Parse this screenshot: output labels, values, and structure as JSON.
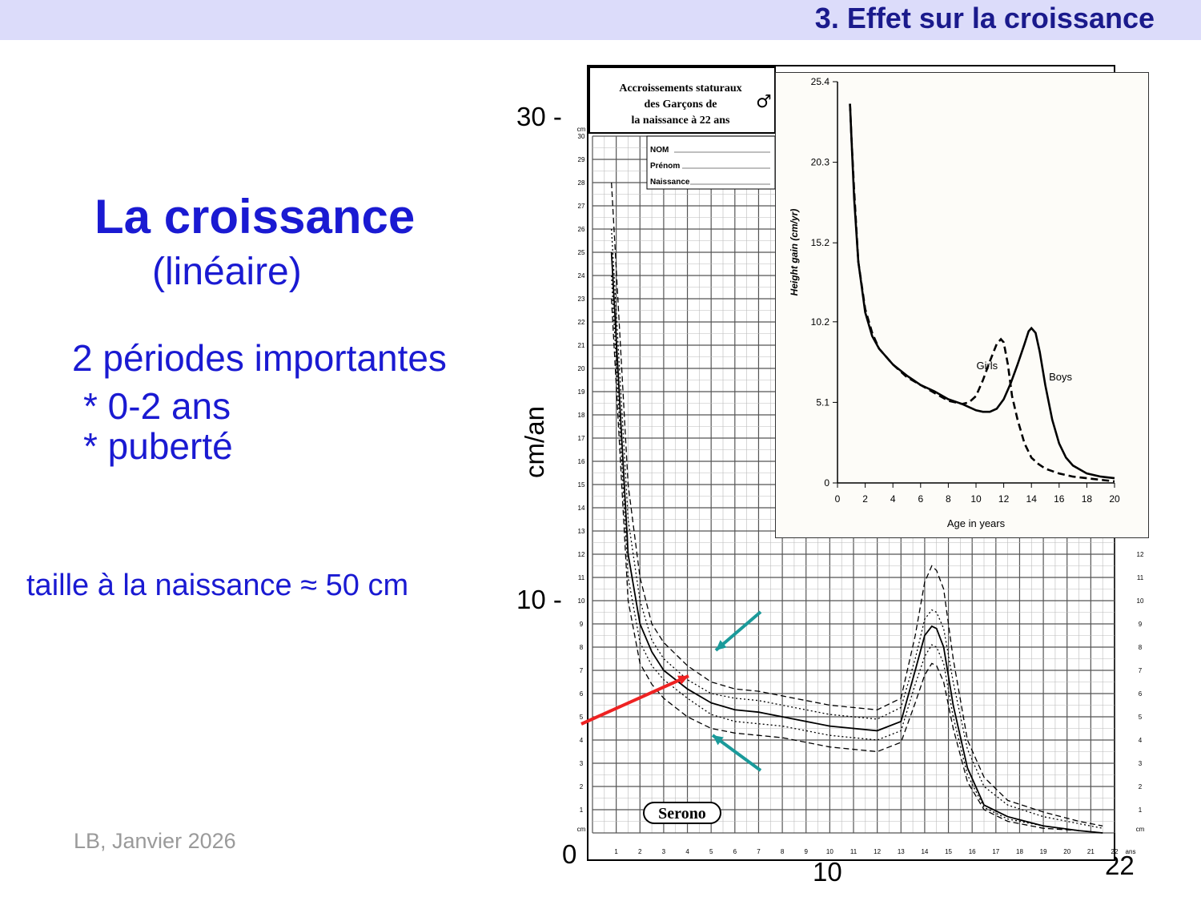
{
  "header": {
    "title": "3. Effet sur la croissance"
  },
  "slide": {
    "title": "La croissance",
    "subtitle": "(linéaire)",
    "periods_heading": "2 périodes importantes",
    "bullets": [
      "* 0-2 ans",
      "* puberté"
    ],
    "birth_note": "taille à la naissance ≈ 50 cm",
    "footer": "LB, Janvier 2026"
  },
  "axis_overlay": {
    "y_top": "30 -",
    "y_mid": "10 -",
    "y_zero": "0",
    "y_unit": "cm/an",
    "x_mid": "10",
    "x_end": "22"
  },
  "chart_data": [
    {
      "type": "line",
      "title": "Accroissements staturaux des Garçons de la naissance à 22 ans",
      "symbol": "♂",
      "form_fields": [
        "NOM",
        "Prénom",
        "Naissance"
      ],
      "brand": "Serono",
      "y_unit": "cm",
      "x_unit": "ans",
      "xlim": [
        0,
        22
      ],
      "ylim": [
        0,
        30
      ],
      "x_ticks": [
        1,
        2,
        3,
        4,
        5,
        6,
        7,
        8,
        9,
        10,
        11,
        12,
        13,
        14,
        15,
        16,
        17,
        18,
        19,
        20,
        21,
        22
      ],
      "y_ticks": [
        1,
        2,
        3,
        4,
        5,
        6,
        7,
        8,
        9,
        10,
        11,
        12,
        13,
        14,
        15,
        16,
        17,
        18,
        19,
        20,
        21,
        22,
        23,
        24,
        25,
        26,
        27,
        28,
        29,
        30
      ],
      "series": [
        {
          "style": "dashed",
          "x": [
            0.8,
            1.5,
            2,
            2.5,
            3,
            4,
            5,
            6,
            7,
            8,
            10,
            12,
            13,
            13.6,
            14,
            14.3,
            14.5,
            14.8,
            15.2,
            15.8,
            16.5,
            17.5,
            19,
            20.5,
            21.5
          ],
          "y": [
            28,
            15,
            11,
            9,
            8.2,
            7.2,
            6.5,
            6.2,
            6.1,
            5.9,
            5.5,
            5.3,
            5.8,
            8.5,
            10.8,
            11.5,
            11.3,
            10.5,
            7.5,
            4,
            2.4,
            1.4,
            0.9,
            0.5,
            0.3
          ]
        },
        {
          "style": "dotted",
          "x": [
            0.8,
            1.5,
            2,
            2.5,
            3,
            4,
            5,
            6,
            7,
            8,
            10,
            12,
            13,
            13.6,
            14,
            14.3,
            14.5,
            14.8,
            15.2,
            15.8,
            16.5,
            17.5,
            19,
            20.5,
            21.5
          ],
          "y": [
            26,
            13.5,
            10,
            8.3,
            7.5,
            6.6,
            6,
            5.8,
            5.7,
            5.5,
            5.1,
            4.9,
            5.4,
            7.5,
            9.2,
            9.6,
            9.5,
            8.8,
            6.5,
            3.6,
            2,
            1.2,
            0.7,
            0.4,
            0.2
          ]
        },
        {
          "style": "solid",
          "x": [
            0.8,
            1.5,
            2,
            2.5,
            3,
            4,
            5,
            6,
            7,
            8,
            10,
            12,
            13,
            13.6,
            14,
            14.3,
            14.5,
            14.8,
            15.2,
            15.8,
            16.5,
            17.5,
            19,
            20.5,
            21.5
          ],
          "y": [
            25,
            12,
            9,
            7.8,
            7,
            6.2,
            5.6,
            5.3,
            5.2,
            5,
            4.6,
            4.4,
            4.8,
            7,
            8.5,
            8.9,
            8.8,
            8,
            5.5,
            2.8,
            1.2,
            0.7,
            0.3,
            0.1,
            0
          ]
        },
        {
          "style": "dotted",
          "x": [
            0.8,
            1.5,
            2,
            2.5,
            3,
            4,
            5,
            6,
            7,
            8,
            10,
            12,
            13,
            13.6,
            14,
            14.3,
            14.5,
            14.8,
            15.2,
            15.8,
            16.5,
            17.5,
            19,
            20.5,
            21.5
          ],
          "y": [
            24,
            11,
            8.2,
            7.2,
            6.6,
            5.8,
            5.1,
            4.8,
            4.7,
            4.6,
            4.2,
            4,
            4.4,
            6.4,
            7.6,
            8.1,
            8,
            7.3,
            5,
            2.5,
            1.1,
            0.6,
            0.3,
            0.1,
            0
          ]
        },
        {
          "style": "dashed",
          "x": [
            0.8,
            1.5,
            2,
            2.5,
            3,
            4,
            5,
            6,
            7,
            8,
            10,
            12,
            13,
            13.6,
            14,
            14.3,
            14.5,
            14.8,
            15.2,
            15.8,
            16.5,
            17.5,
            19,
            20.5,
            21.5
          ],
          "y": [
            23,
            10,
            7.3,
            6.4,
            5.8,
            5,
            4.5,
            4.3,
            4.2,
            4.1,
            3.7,
            3.5,
            3.9,
            5.6,
            6.8,
            7.3,
            7.2,
            6.5,
            4.5,
            2.2,
            1,
            0.5,
            0.2,
            0.1,
            0
          ]
        }
      ]
    },
    {
      "type": "line",
      "xlabel": "Age in years",
      "ylabel": "Height gain (cm/yr)",
      "xlim": [
        0,
        20
      ],
      "ylim": [
        0,
        25.4
      ],
      "x_ticks": [
        0,
        2,
        4,
        6,
        8,
        10,
        12,
        14,
        16,
        18,
        20
      ],
      "y_ticks": [
        0,
        5.1,
        10.2,
        15.2,
        20.3,
        25.4
      ],
      "y_tick_labels": [
        "0",
        "5.1",
        "10.2",
        "15.2",
        "20.3",
        "25.4"
      ],
      "series": [
        {
          "name": "Girls",
          "style": "dashed",
          "x": [
            0.9,
            1,
            1.2,
            1.5,
            2,
            2.5,
            3,
            4,
            5,
            6,
            7,
            8,
            9,
            9.5,
            10,
            10.5,
            11,
            11.5,
            11.8,
            12,
            12.3,
            12.6,
            13,
            13.5,
            14,
            14.5,
            15,
            16,
            17,
            18,
            19,
            20
          ],
          "y": [
            24,
            22,
            18.5,
            14,
            11,
            9.5,
            8.5,
            7.5,
            6.7,
            6.2,
            5.7,
            5.2,
            5,
            5.1,
            5.5,
            6.5,
            7.7,
            8.8,
            9.1,
            8.9,
            7.5,
            5.5,
            4,
            2.5,
            1.6,
            1.2,
            0.9,
            0.6,
            0.4,
            0.3,
            0.2,
            0.1
          ]
        },
        {
          "name": "Boys",
          "style": "solid",
          "x": [
            0.9,
            1,
            1.2,
            1.5,
            2,
            2.5,
            3,
            4,
            5,
            6,
            7,
            8,
            9,
            10,
            10.5,
            11,
            11.5,
            12,
            12.5,
            13,
            13.5,
            13.8,
            14,
            14.3,
            14.6,
            15,
            15.5,
            16,
            16.5,
            17,
            18,
            19,
            20
          ],
          "y": [
            24,
            22,
            18,
            14,
            10.8,
            9.3,
            8.5,
            7.5,
            6.8,
            6.2,
            5.8,
            5.3,
            5,
            4.6,
            4.5,
            4.5,
            4.7,
            5.3,
            6.3,
            7.5,
            8.8,
            9.6,
            9.8,
            9.5,
            8.3,
            6.2,
            4,
            2.5,
            1.6,
            1.1,
            0.6,
            0.4,
            0.3
          ]
        }
      ],
      "labels": [
        "Girls",
        "Boys"
      ]
    }
  ]
}
